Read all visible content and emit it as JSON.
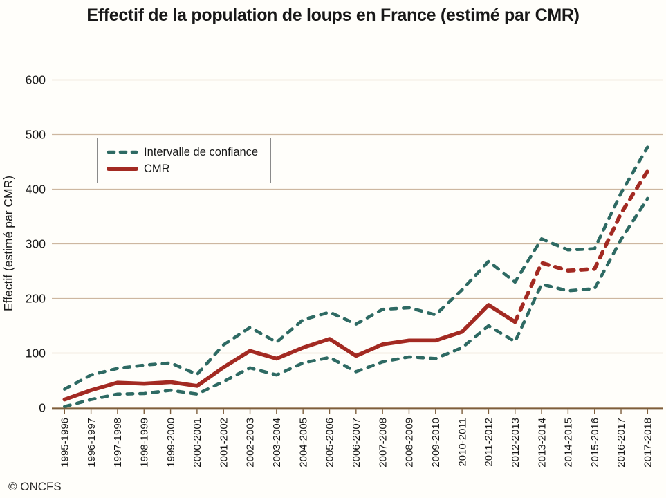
{
  "title": "Effectif de la population de loups en France (estimé par CMR)",
  "footer": "© ONCFS",
  "colors": {
    "cmr_red": "#a32a22",
    "ci_teal": "#2e6a63",
    "grid_tan": "#cdb7a0",
    "axis_brown": "#7d5e3c",
    "text_dark": "#181818"
  },
  "legend": {
    "items": [
      {
        "label": "Intervalle de confiance",
        "style": "dashed"
      },
      {
        "label": "CMR",
        "style": "solid"
      }
    ]
  },
  "chart_data": {
    "type": "line",
    "title": "Effectif de la population de loups en France (estimé par CMR)",
    "xlabel": "",
    "ylabel": "Effectif (estimé par CMR)",
    "ylim": [
      0,
      600
    ],
    "yticks": [
      0,
      100,
      200,
      300,
      400,
      500,
      600
    ],
    "grid": "horizontal",
    "legend_position": "upper-left-inside",
    "categories": [
      "1995-1996",
      "1996-1997",
      "1997-1998",
      "1998-1999",
      "1999-2000",
      "2000-2001",
      "2001-2002",
      "2002-2003",
      "2003-2004",
      "2004-2005",
      "2005-2006",
      "2006-2007",
      "2007-2008",
      "2008-2009",
      "2009-2010",
      "2010-2011",
      "2011-2012",
      "2012-2013",
      "2013-2014",
      "2014-2015",
      "2015-2016",
      "2016-2017",
      "2017-2018"
    ],
    "series": [
      {
        "name": "Intervalle de confiance (borne supérieure)",
        "style": "dashed",
        "values": [
          34,
          60,
          72,
          78,
          82,
          61,
          115,
          147,
          120,
          161,
          175,
          153,
          180,
          183,
          170,
          216,
          268,
          230,
          309,
          289,
          291,
          393,
          477
        ]
      },
      {
        "name": "CMR",
        "style": "solid-then-dashed",
        "dashed_from_index": 17,
        "values": [
          15,
          32,
          46,
          44,
          47,
          40,
          74,
          104,
          90,
          110,
          126,
          95,
          116,
          123,
          123,
          139,
          188,
          157,
          265,
          251,
          254,
          356,
          433
        ]
      },
      {
        "name": "Intervalle de confiance (borne inférieure)",
        "style": "dashed",
        "values": [
          2,
          15,
          25,
          26,
          32,
          25,
          48,
          73,
          60,
          82,
          92,
          66,
          84,
          93,
          90,
          110,
          150,
          121,
          226,
          214,
          218,
          308,
          383
        ]
      }
    ]
  }
}
